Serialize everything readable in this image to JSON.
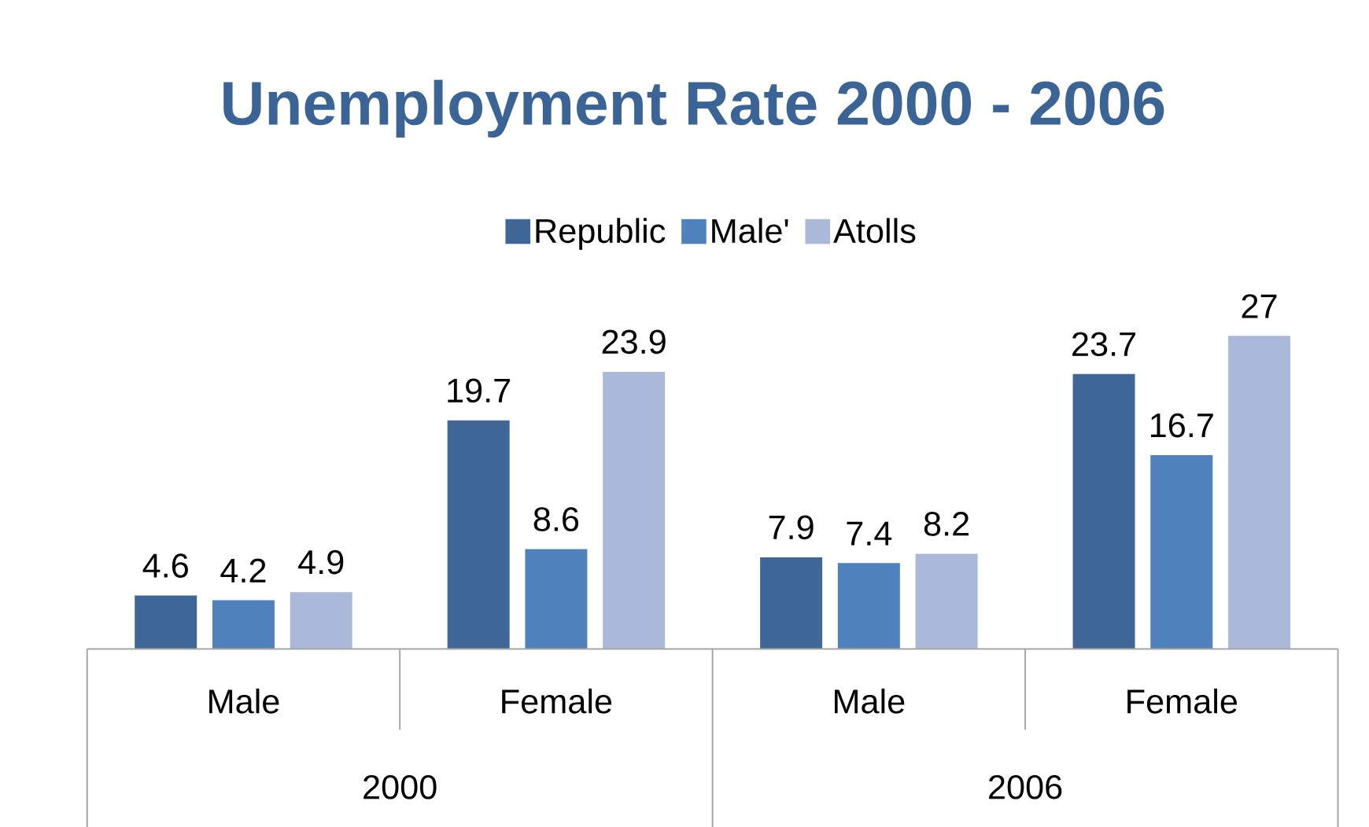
{
  "chart_data": {
    "type": "bar",
    "title": "Unemployment Rate 2000 - 2006",
    "categories": [
      "Male",
      "Female",
      "Male",
      "Female"
    ],
    "series": [
      {
        "name": "Republic",
        "color": "#3f6899",
        "values": [
          4.6,
          19.7,
          7.9,
          23.7
        ]
      },
      {
        "name": "Male'",
        "color": "#4f81bd",
        "values": [
          4.2,
          8.6,
          7.4,
          16.7
        ]
      },
      {
        "name": "Atolls",
        "color": "#aab9d9",
        "values": [
          4.9,
          23.9,
          8.2,
          27
        ]
      }
    ],
    "annotations": [
      "2000",
      "2006"
    ],
    "data_labels": true,
    "legend": "top"
  }
}
